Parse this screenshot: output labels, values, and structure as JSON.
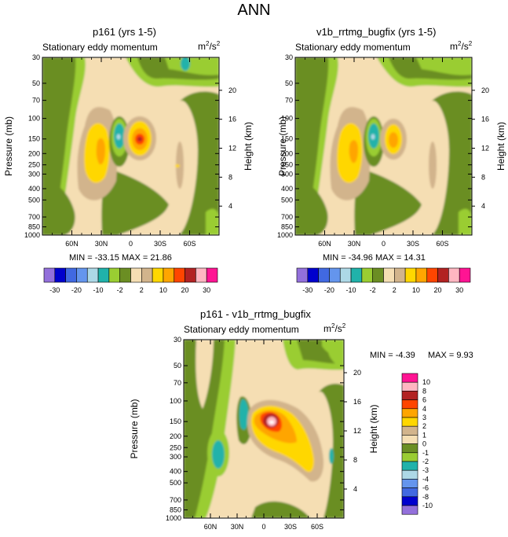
{
  "page_title": "ANN",
  "panels": [
    {
      "title": "p161 (yrs 1-5)",
      "subtitle": "Stationary eddy momentum",
      "units_base": "m",
      "units_sup1": "2",
      "units_slash": "/s",
      "units_sup2": "2",
      "ylabel": "Pressure (mb)",
      "ylabel_right": "Height (km)",
      "stats": "MIN = -33.15  MAX =  21.86"
    },
    {
      "title": "v1b_rrtmg_bugfix (yrs 1-5)",
      "subtitle": "Stationary eddy momentum",
      "units_base": "m",
      "units_sup1": "2",
      "units_slash": "/s",
      "units_sup2": "2",
      "ylabel": "Pressure (mb)",
      "ylabel_right": "Height (km)",
      "stats": "MIN = -34.96  MAX =  14.31"
    },
    {
      "title": "p161 - v1b_rrtmg_bugfix",
      "subtitle": "Stationary eddy momentum",
      "units_base": "m",
      "units_sup1": "2",
      "units_slash": "/s",
      "units_sup2": "2",
      "ylabel": "Pressure (mb)",
      "ylabel_right": "Height (km)",
      "stats_min": "MIN =  -4.39",
      "stats_max": "MAX =    9.93"
    }
  ],
  "chart_data": [
    {
      "type": "heatmap",
      "title": "p161 (yrs 1-5)",
      "x_ticks": [
        "60N",
        "30N",
        "0",
        "30S",
        "60S"
      ],
      "x_tick_values": [
        60,
        30,
        0,
        -30,
        -60
      ],
      "xlim": [
        90,
        -90
      ],
      "y_ticks": [
        "30",
        "50",
        "70",
        "100",
        "150",
        "200",
        "250",
        "300",
        "400",
        "500",
        "700",
        "850",
        "1000"
      ],
      "y_tick_values": [
        30,
        50,
        70,
        100,
        150,
        200,
        250,
        300,
        400,
        500,
        700,
        850,
        1000
      ],
      "ylim": [
        1000,
        30
      ],
      "height_ticks": [
        "4",
        "8",
        "12",
        "16",
        "20"
      ],
      "height_tick_values": [
        4,
        8,
        12,
        16,
        20
      ],
      "min": -33.15,
      "max": 21.86,
      "ylabel": "Pressure (mb)",
      "ylabel_right": "Height (km)"
    },
    {
      "type": "heatmap",
      "title": "v1b_rrtmg_bugfix (yrs 1-5)",
      "x_ticks": [
        "60N",
        "30N",
        "0",
        "30S",
        "60S"
      ],
      "x_tick_values": [
        60,
        30,
        0,
        -30,
        -60
      ],
      "xlim": [
        90,
        -90
      ],
      "y_ticks": [
        "30",
        "50",
        "70",
        "100",
        "150",
        "200",
        "250",
        "300",
        "400",
        "500",
        "700",
        "850",
        "1000"
      ],
      "y_tick_values": [
        30,
        50,
        70,
        100,
        150,
        200,
        250,
        300,
        400,
        500,
        700,
        850,
        1000
      ],
      "ylim": [
        1000,
        30
      ],
      "height_ticks": [
        "4",
        "8",
        "12",
        "16",
        "20"
      ],
      "height_tick_values": [
        4,
        8,
        12,
        16,
        20
      ],
      "min": -34.96,
      "max": 14.31,
      "ylabel": "Pressure (mb)",
      "ylabel_right": "Height (km)"
    },
    {
      "type": "heatmap",
      "title": "p161 - v1b_rrtmg_bugfix",
      "x_ticks": [
        "60N",
        "30N",
        "0",
        "30S",
        "60S"
      ],
      "x_tick_values": [
        60,
        30,
        0,
        -30,
        -60
      ],
      "xlim": [
        90,
        -90
      ],
      "y_ticks": [
        "30",
        "50",
        "70",
        "100",
        "150",
        "200",
        "250",
        "300",
        "400",
        "500",
        "700",
        "850",
        "1000"
      ],
      "y_tick_values": [
        30,
        50,
        70,
        100,
        150,
        200,
        250,
        300,
        400,
        500,
        700,
        850,
        1000
      ],
      "ylim": [
        1000,
        30
      ],
      "height_ticks": [
        "4",
        "8",
        "12",
        "16",
        "20"
      ],
      "height_tick_values": [
        4,
        8,
        12,
        16,
        20
      ],
      "min": -4.39,
      "max": 9.93,
      "ylabel": "Pressure (mb)",
      "ylabel_right": "Height (km)"
    }
  ],
  "colorbar_top": {
    "colors": [
      "#9370db",
      "#0000cd",
      "#4169e1",
      "#6495ed",
      "#add8e6",
      "#20b2aa",
      "#9acd32",
      "#6b8e23",
      "#f5deb3",
      "#d2b48c",
      "#ffd700",
      "#ffa500",
      "#ff4500",
      "#b22222",
      "#ffb6c1",
      "#ff1493"
    ],
    "labels": [
      "-30",
      "-20",
      "-10",
      "-2",
      "2",
      "10",
      "20",
      "30"
    ]
  },
  "colorbar_diff": {
    "colors": [
      "#ff1493",
      "#ffb6c1",
      "#b22222",
      "#ff4500",
      "#ffa500",
      "#ffd700",
      "#d2b48c",
      "#f5deb3",
      "#6b8e23",
      "#9acd32",
      "#20b2aa",
      "#add8e6",
      "#6495ed",
      "#4169e1",
      "#0000cd",
      "#9370db"
    ],
    "labels": [
      "10",
      "8",
      "6",
      "4",
      "3",
      "2",
      "1",
      "0",
      "-1",
      "-2",
      "-3",
      "-4",
      "-6",
      "-8",
      "-10"
    ]
  }
}
